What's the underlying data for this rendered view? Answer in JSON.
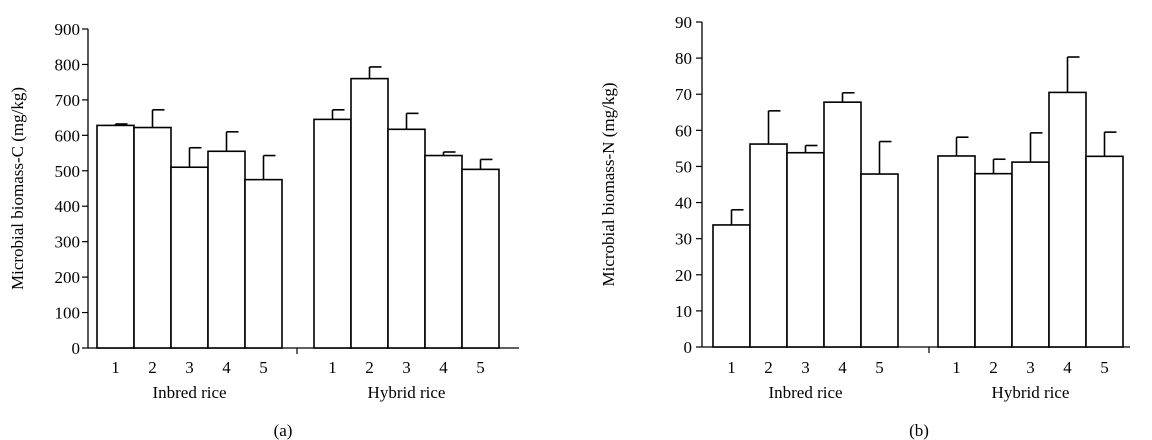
{
  "chart_data": [
    {
      "type": "bar",
      "panel_label": "(a)",
      "ylabel": "Microbial biomass-C (mg/kg)",
      "ylim": [
        0,
        900
      ],
      "yticks": [
        0,
        100,
        200,
        300,
        400,
        500,
        600,
        700,
        800,
        900
      ],
      "groups": [
        {
          "name": "Inbred rice",
          "categories": [
            "1",
            "2",
            "3",
            "4",
            "5"
          ],
          "values": [
            628,
            622,
            510,
            555,
            475
          ],
          "errors": [
            4,
            50,
            55,
            55,
            68
          ]
        },
        {
          "name": "Hybrid rice",
          "categories": [
            "1",
            "2",
            "3",
            "4",
            "5"
          ],
          "values": [
            645,
            760,
            617,
            543,
            504
          ],
          "errors": [
            27,
            33,
            45,
            10,
            28
          ]
        }
      ],
      "bar_color": "#ffffff",
      "grid": false
    },
    {
      "type": "bar",
      "panel_label": "(b)",
      "ylabel": "Microbial biomass-N (mg/kg)",
      "ylim": [
        0,
        90
      ],
      "yticks": [
        0,
        10,
        20,
        30,
        40,
        50,
        60,
        70,
        80,
        90
      ],
      "groups": [
        {
          "name": "Inbred rice",
          "categories": [
            "1",
            "2",
            "3",
            "4",
            "5"
          ],
          "values": [
            33.8,
            56.2,
            53.8,
            67.8,
            47.9
          ],
          "errors": [
            4.2,
            9.2,
            2.0,
            2.6,
            9.0
          ]
        },
        {
          "name": "Hybrid rice",
          "categories": [
            "1",
            "2",
            "3",
            "4",
            "5"
          ],
          "values": [
            52.9,
            48.0,
            51.2,
            70.5,
            52.8
          ],
          "errors": [
            5.2,
            4.0,
            8.1,
            9.8,
            6.7
          ]
        }
      ],
      "bar_color": "#ffffff",
      "grid": false
    }
  ]
}
